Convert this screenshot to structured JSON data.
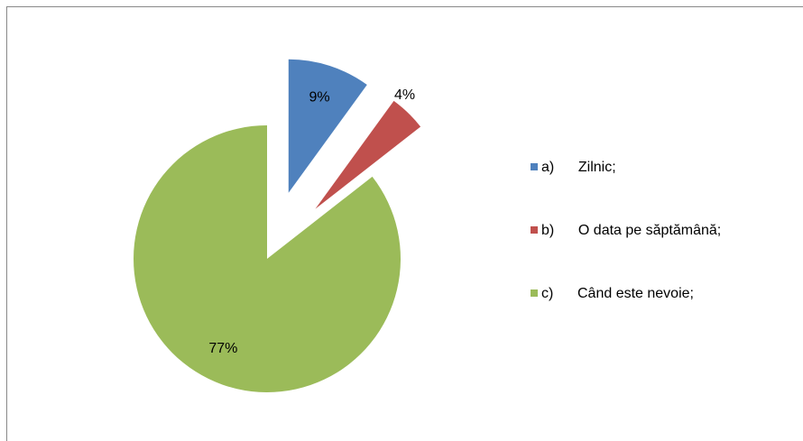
{
  "chart_data": {
    "type": "pie",
    "categories": [
      "a)      Zilnic;",
      "b)      O data pe săptămână;",
      "c)      Când este nevoie;"
    ],
    "values": [
      9,
      4,
      77
    ],
    "value_labels": [
      "9%",
      "4%",
      "77%"
    ],
    "colors": [
      "#4f81bd",
      "#c0504d",
      "#9bbb59"
    ],
    "legend": "right"
  }
}
